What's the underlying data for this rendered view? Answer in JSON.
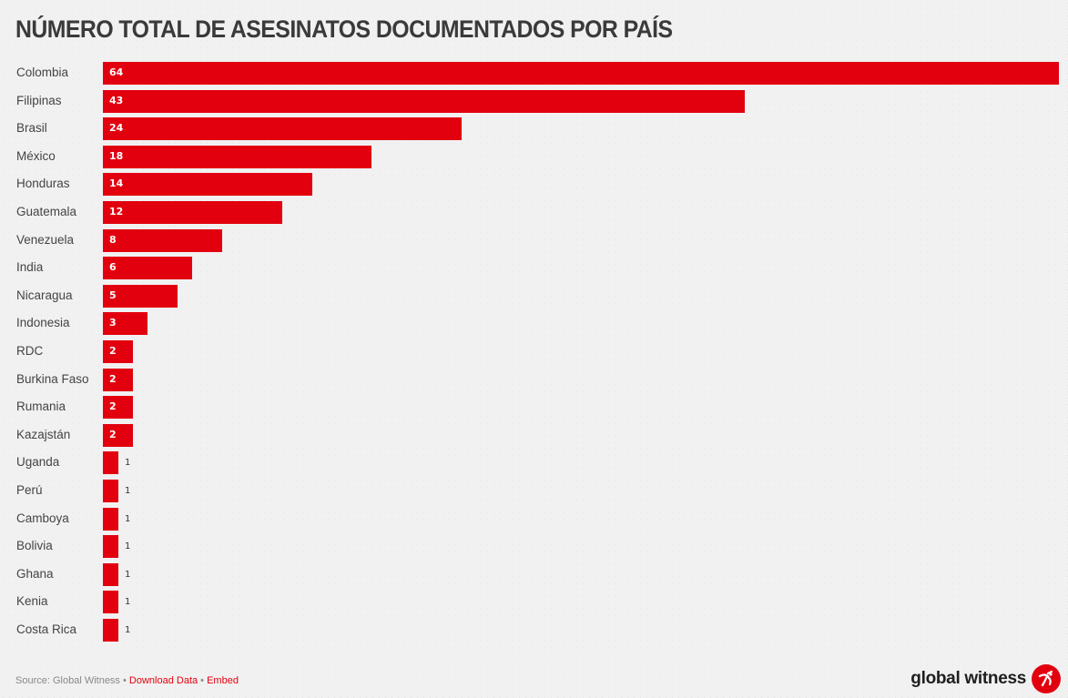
{
  "title": "NÚMERO TOTAL DE ASESINATOS DOCUMENTADOS POR PAÍS",
  "chart_data": {
    "type": "bar",
    "orientation": "horizontal",
    "title": "NÚMERO TOTAL DE ASESINATOS DOCUMENTADOS POR PAÍS",
    "xlabel": "",
    "ylabel": "",
    "categories": [
      "Colombia",
      "Filipinas",
      "Brasil",
      "México",
      "Honduras",
      "Guatemala",
      "Venezuela",
      "India",
      "Nicaragua",
      "Indonesia",
      "RDC",
      "Burkina Faso",
      "Rumania",
      "Kazajstán",
      "Uganda",
      "Perú",
      "Camboya",
      "Bolivia",
      "Ghana",
      "Kenia",
      "Costa Rica"
    ],
    "values": [
      64,
      43,
      24,
      18,
      14,
      12,
      8,
      6,
      5,
      3,
      2,
      2,
      2,
      2,
      1,
      1,
      1,
      1,
      1,
      1,
      1
    ],
    "xlim": [
      0,
      64
    ],
    "grid": false,
    "legend": null,
    "bar_color": "#e2000f"
  },
  "footer": {
    "source": "Source: Global Witness",
    "separator": " • ",
    "download_label": "Download Data",
    "embed_label": "Embed"
  },
  "logo": {
    "text": "global witness",
    "icon": "global-witness-figure-icon"
  },
  "colors": {
    "accent": "#e2000f",
    "title": "#3a3a3a",
    "background": "#f1f1f1"
  }
}
